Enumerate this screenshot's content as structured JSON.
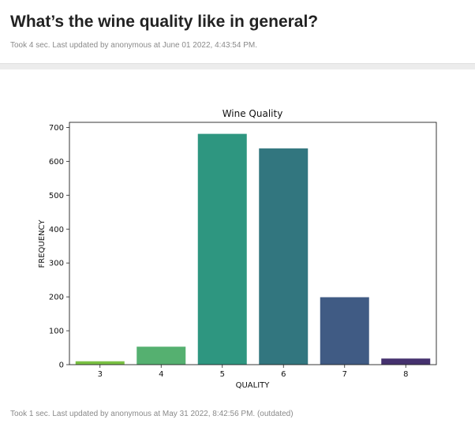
{
  "header": {
    "title": "What’s the wine quality like in general?",
    "meta": "Took 4 sec. Last updated by anonymous at June 01 2022, 4:43:54 PM."
  },
  "footer": {
    "meta": "Took 1 sec. Last updated by anonymous at May 31 2022, 8:42:56 PM. (outdated)"
  },
  "chart_data": {
    "type": "bar",
    "title": "Wine Quality",
    "xlabel": "QUALITY",
    "ylabel": "FREQUENCY",
    "categories": [
      "3",
      "4",
      "5",
      "6",
      "7",
      "8"
    ],
    "values": [
      10,
      53,
      681,
      638,
      199,
      18
    ],
    "colors": [
      "#7ac143",
      "#55b070",
      "#2e9680",
      "#32767f",
      "#405b84",
      "#45316e"
    ],
    "ylim": [
      0,
      715
    ],
    "yticks": [
      0,
      100,
      200,
      300,
      400,
      500,
      600,
      700
    ],
    "grid": false
  }
}
